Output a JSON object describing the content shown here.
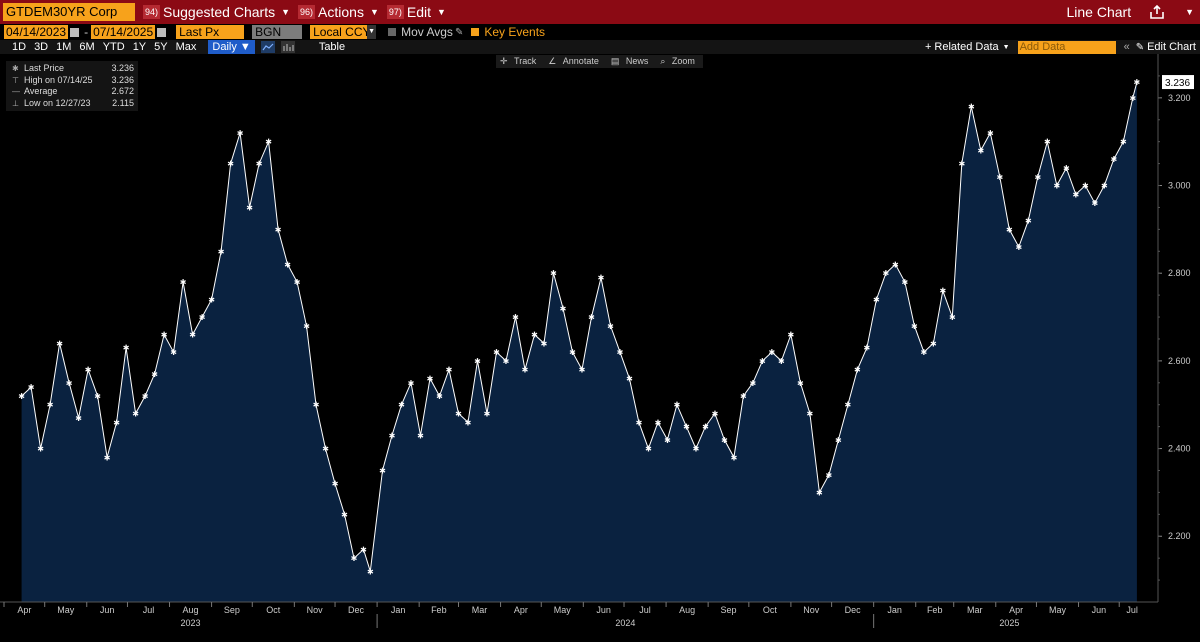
{
  "topbar": {
    "ticker": "GTDEM30YR Corp",
    "menu": [
      {
        "num": "94)",
        "label": "Suggested Charts"
      },
      {
        "num": "96)",
        "label": "Actions"
      },
      {
        "num": "97)",
        "label": "Edit"
      }
    ],
    "right_label": "Line Chart",
    "share_icon": "share-icon"
  },
  "bar2": {
    "start_date": "04/14/2023",
    "end_date": "07/14/2025",
    "field1": "Last Px",
    "field2": "BGN",
    "field3": "Local CCY",
    "mov_avgs": "Mov Avgs",
    "key_events": "Key Events"
  },
  "bar3": {
    "ranges": [
      "1D",
      "3D",
      "1M",
      "6M",
      "YTD",
      "1Y",
      "5Y",
      "Max"
    ],
    "frequency": "Daily",
    "table": "Table",
    "related_data": "+ Related Data",
    "add_data_placeholder": "Add Data",
    "edit_chart": "Edit Chart"
  },
  "tools": {
    "track": "Track",
    "annotate": "Annotate",
    "news": "News",
    "zoom": "Zoom"
  },
  "legend": {
    "rows": [
      {
        "label": "Last Price",
        "value": "3.236"
      },
      {
        "label": "High on 07/14/25",
        "value": "3.236"
      },
      {
        "label": "Average",
        "value": "2.672"
      },
      {
        "label": "Low on 12/27/23",
        "value": "2.115"
      }
    ]
  },
  "chart_data": {
    "type": "area",
    "ylim": [
      2.05,
      3.3
    ],
    "yticks": [
      "3.200",
      "3.000",
      "2.800",
      "2.600",
      "2.400",
      "2.200"
    ],
    "ytick_values": [
      3.2,
      3.0,
      2.8,
      2.6,
      2.4,
      2.2
    ],
    "last_value_label": "3.236",
    "months": [
      "Apr",
      "May",
      "Jun",
      "Jul",
      "Aug",
      "Sep",
      "Oct",
      "Nov",
      "Dec",
      "Jan",
      "Feb",
      "Mar",
      "Apr",
      "May",
      "Jun",
      "Jul",
      "Aug",
      "Sep",
      "Oct",
      "Nov",
      "Dec",
      "Jan",
      "Feb",
      "Mar",
      "Apr",
      "May",
      "Jun",
      "Jul"
    ],
    "years": [
      "2023",
      "2024",
      "2025"
    ],
    "colors": {
      "fill": "#0a2240",
      "line": "#ffffff",
      "marker": "#ffffff"
    },
    "x": [
      "2023-04-14",
      "2023-04-21",
      "2023-04-28",
      "2023-05-05",
      "2023-05-12",
      "2023-05-19",
      "2023-05-26",
      "2023-06-02",
      "2023-06-09",
      "2023-06-16",
      "2023-06-23",
      "2023-06-30",
      "2023-07-07",
      "2023-07-14",
      "2023-07-21",
      "2023-07-28",
      "2023-08-04",
      "2023-08-11",
      "2023-08-18",
      "2023-08-25",
      "2023-09-01",
      "2023-09-08",
      "2023-09-15",
      "2023-09-22",
      "2023-09-29",
      "2023-10-06",
      "2023-10-13",
      "2023-10-20",
      "2023-10-27",
      "2023-11-03",
      "2023-11-10",
      "2023-11-17",
      "2023-11-24",
      "2023-12-01",
      "2023-12-08",
      "2023-12-15",
      "2023-12-22",
      "2023-12-27",
      "2024-01-05",
      "2024-01-12",
      "2024-01-19",
      "2024-01-26",
      "2024-02-02",
      "2024-02-09",
      "2024-02-16",
      "2024-02-23",
      "2024-03-01",
      "2024-03-08",
      "2024-03-15",
      "2024-03-22",
      "2024-03-29",
      "2024-04-05",
      "2024-04-12",
      "2024-04-19",
      "2024-04-26",
      "2024-05-03",
      "2024-05-10",
      "2024-05-17",
      "2024-05-24",
      "2024-05-31",
      "2024-06-07",
      "2024-06-14",
      "2024-06-21",
      "2024-06-28",
      "2024-07-05",
      "2024-07-12",
      "2024-07-19",
      "2024-07-26",
      "2024-08-02",
      "2024-08-09",
      "2024-08-16",
      "2024-08-23",
      "2024-08-30",
      "2024-09-06",
      "2024-09-13",
      "2024-09-20",
      "2024-09-27",
      "2024-10-04",
      "2024-10-11",
      "2024-10-18",
      "2024-10-25",
      "2024-11-01",
      "2024-11-08",
      "2024-11-15",
      "2024-11-22",
      "2024-11-29",
      "2024-12-06",
      "2024-12-13",
      "2024-12-20",
      "2024-12-27",
      "2025-01-03",
      "2025-01-10",
      "2025-01-17",
      "2025-01-24",
      "2025-01-31",
      "2025-02-07",
      "2025-02-14",
      "2025-02-21",
      "2025-02-28",
      "2025-03-07",
      "2025-03-14",
      "2025-03-21",
      "2025-03-28",
      "2025-04-04",
      "2025-04-11",
      "2025-04-18",
      "2025-04-25",
      "2025-05-02",
      "2025-05-09",
      "2025-05-16",
      "2025-05-23",
      "2025-05-30",
      "2025-06-06",
      "2025-06-13",
      "2025-06-20",
      "2025-06-27",
      "2025-07-04",
      "2025-07-11",
      "2025-07-14"
    ],
    "values": [
      2.52,
      2.54,
      2.4,
      2.5,
      2.64,
      2.55,
      2.47,
      2.58,
      2.52,
      2.38,
      2.46,
      2.63,
      2.48,
      2.52,
      2.57,
      2.66,
      2.62,
      2.78,
      2.66,
      2.7,
      2.74,
      2.85,
      3.05,
      3.12,
      2.95,
      3.05,
      3.1,
      2.9,
      2.82,
      2.78,
      2.68,
      2.5,
      2.4,
      2.32,
      2.25,
      2.15,
      2.17,
      2.12,
      2.35,
      2.43,
      2.5,
      2.55,
      2.43,
      2.56,
      2.52,
      2.58,
      2.48,
      2.46,
      2.6,
      2.48,
      2.62,
      2.6,
      2.7,
      2.58,
      2.66,
      2.64,
      2.8,
      2.72,
      2.62,
      2.58,
      2.7,
      2.79,
      2.68,
      2.62,
      2.56,
      2.46,
      2.4,
      2.46,
      2.42,
      2.5,
      2.45,
      2.4,
      2.45,
      2.48,
      2.42,
      2.38,
      2.52,
      2.55,
      2.6,
      2.62,
      2.6,
      2.66,
      2.55,
      2.48,
      2.3,
      2.34,
      2.42,
      2.5,
      2.58,
      2.63,
      2.74,
      2.8,
      2.82,
      2.78,
      2.68,
      2.62,
      2.64,
      2.76,
      2.7,
      3.05,
      3.18,
      3.08,
      3.12,
      3.02,
      2.9,
      2.86,
      2.92,
      3.02,
      3.1,
      3.0,
      3.04,
      2.98,
      3.0,
      2.96,
      3.0,
      3.06,
      3.1,
      3.2,
      3.236
    ]
  }
}
